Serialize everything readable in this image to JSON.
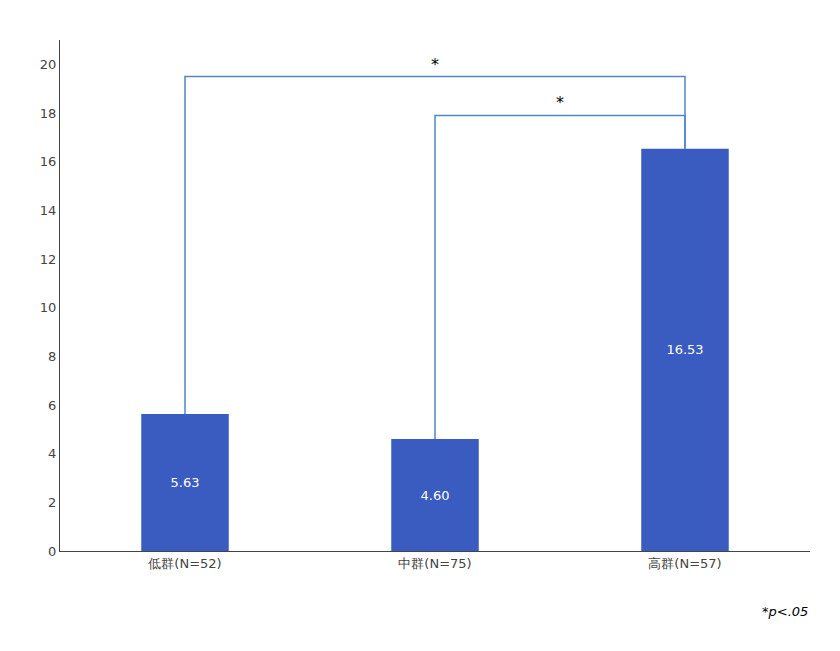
{
  "chart_data": {
    "type": "bar",
    "categories": [
      "低群(N=52)",
      "中群(N=75)",
      "高群(N=57)"
    ],
    "values": [
      5.63,
      4.6,
      16.53
    ],
    "value_labels": [
      "5.63",
      "4.60",
      "16.53"
    ],
    "data_labels": true,
    "color": "#3a5bbf",
    "ylim": [
      0,
      21
    ],
    "yticks": [
      0,
      2,
      4,
      6,
      8,
      10,
      12,
      14,
      16,
      18,
      20
    ],
    "grid": false,
    "brackets": [
      {
        "from": "低群(N=52)",
        "to": "高群(N=57)",
        "y": 19.5,
        "label": "*",
        "color": "#4f86c6"
      },
      {
        "from": "中群(N=75)",
        "to": "高群(N=57)",
        "y": 17.9,
        "label": "*",
        "color": "#4f86c6"
      }
    ],
    "annotations": [
      "*p<.05"
    ]
  }
}
